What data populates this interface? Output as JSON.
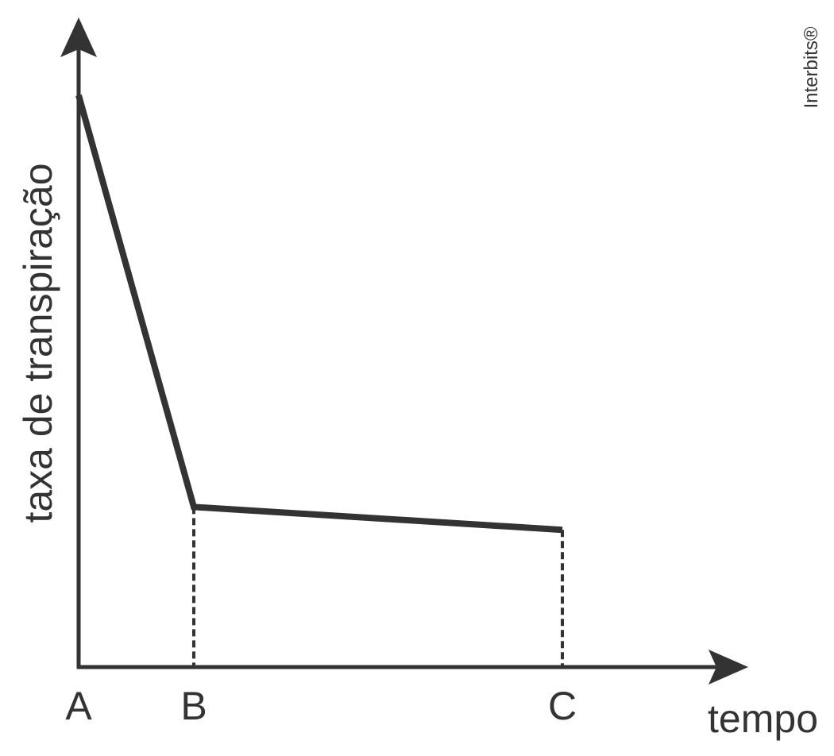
{
  "chart_data": {
    "type": "line",
    "xlabel": "tempo",
    "ylabel": "taxa de transpiração",
    "x_ticks": [
      {
        "label": "A",
        "x": 0
      },
      {
        "label": "B",
        "x": 1
      },
      {
        "label": "C",
        "x": 4.2
      }
    ],
    "series": [
      {
        "points": [
          {
            "x": 0,
            "y": 10
          },
          {
            "x": 1,
            "y": 2.8
          },
          {
            "x": 4.2,
            "y": 2.4
          }
        ]
      }
    ],
    "guides": [
      {
        "x": 1,
        "y": 2.8
      },
      {
        "x": 4.2,
        "y": 2.4
      }
    ],
    "xlim": [
      0,
      6
    ],
    "ylim": [
      0,
      10
    ],
    "grid": false,
    "watermark": "Interbits®"
  }
}
